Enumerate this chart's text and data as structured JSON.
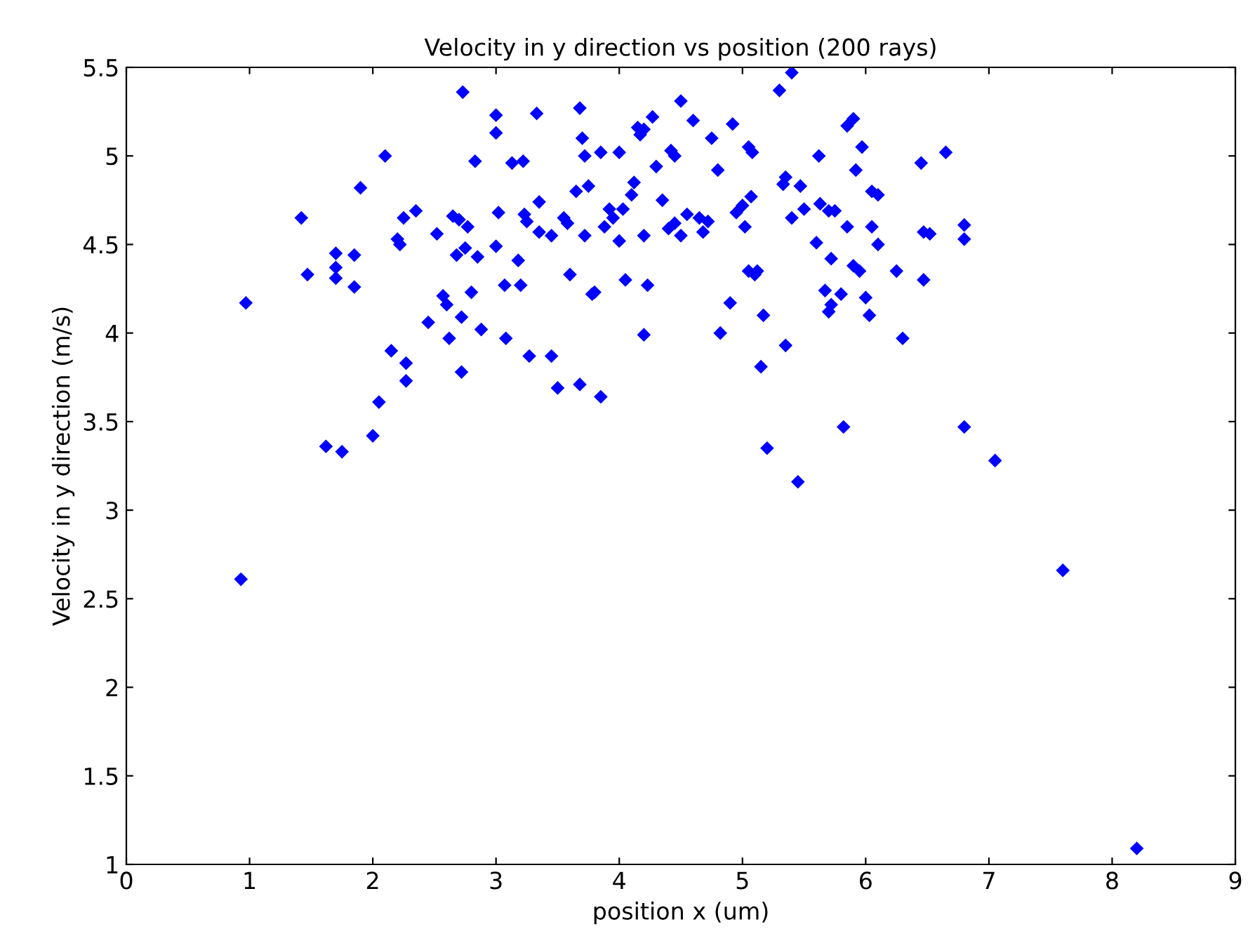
{
  "chart_data": {
    "type": "scatter",
    "title": "Velocity in y direction vs position (200 rays)",
    "xlabel": "position x (um)",
    "ylabel": "Velocity in y direction (m/s)",
    "xlim": [
      0,
      9
    ],
    "xticks": [
      0,
      1,
      2,
      3,
      4,
      5,
      6,
      7,
      8,
      9
    ],
    "ylim": [
      1,
      5.5
    ],
    "yticks": [
      1,
      1.5,
      2,
      2.5,
      3,
      3.5,
      4,
      4.5,
      5,
      5.5
    ],
    "grid": false,
    "marker": "diamond",
    "series": [
      {
        "color": "#0000ff",
        "x": [
          0.93,
          0.97,
          1.42,
          1.47,
          1.62,
          1.7,
          1.7,
          1.7,
          1.75,
          1.85,
          1.85,
          1.9,
          2.0,
          2.05,
          2.1,
          2.15,
          2.2,
          2.22,
          2.25,
          2.27,
          2.27,
          2.35,
          2.45,
          2.52,
          2.57,
          2.6,
          2.62,
          2.65,
          2.68,
          2.7,
          2.72,
          2.72,
          2.73,
          2.75,
          2.77,
          2.8,
          2.83,
          2.85,
          2.88,
          3.0,
          3.0,
          3.02,
          3.0,
          3.07,
          3.08,
          3.13,
          3.18,
          3.2,
          3.22,
          3.23,
          3.25,
          3.27,
          3.33,
          3.35,
          3.35,
          3.45,
          3.45,
          3.5,
          3.55,
          3.58,
          3.6,
          3.65,
          3.68,
          3.7,
          3.72,
          3.72,
          3.68,
          3.75,
          3.78,
          3.8,
          3.85,
          3.85,
          3.88,
          3.92,
          3.95,
          4.0,
          4.0,
          4.03,
          4.05,
          4.1,
          4.12,
          4.15,
          4.17,
          4.2,
          4.2,
          4.2,
          4.23,
          4.27,
          4.3,
          4.35,
          4.4,
          4.42,
          4.45,
          4.45,
          4.5,
          4.5,
          4.55,
          4.6,
          4.65,
          4.68,
          4.72,
          4.75,
          4.8,
          4.82,
          4.9,
          4.92,
          4.95,
          5.0,
          5.02,
          5.05,
          5.05,
          5.07,
          5.08,
          5.1,
          5.12,
          5.15,
          5.17,
          5.2,
          5.3,
          5.33,
          5.35,
          5.35,
          5.4,
          5.4,
          5.45,
          5.47,
          5.5,
          5.6,
          5.62,
          5.63,
          5.67,
          5.7,
          5.7,
          5.72,
          5.72,
          5.75,
          5.8,
          5.82,
          5.85,
          5.85,
          5.9,
          5.9,
          5.92,
          5.95,
          5.97,
          6.0,
          6.03,
          6.05,
          6.05,
          6.1,
          6.1,
          6.25,
          6.3,
          6.45,
          6.47,
          6.47,
          6.52,
          6.65,
          6.8,
          6.8,
          6.8,
          7.05,
          7.6,
          8.2
        ],
        "values": [
          2.61,
          4.17,
          4.65,
          4.33,
          3.36,
          4.45,
          4.37,
          4.31,
          3.33,
          4.44,
          4.26,
          4.82,
          3.42,
          3.61,
          5.0,
          3.9,
          4.53,
          4.5,
          4.65,
          3.83,
          3.73,
          4.69,
          4.06,
          4.56,
          4.21,
          4.16,
          3.97,
          4.66,
          4.44,
          4.64,
          4.09,
          3.78,
          5.36,
          4.48,
          4.6,
          4.23,
          4.97,
          4.43,
          4.02,
          5.23,
          5.13,
          4.68,
          4.49,
          4.27,
          3.97,
          4.96,
          4.41,
          4.27,
          4.97,
          4.67,
          4.63,
          3.87,
          5.24,
          4.74,
          4.57,
          4.55,
          3.87,
          3.69,
          4.65,
          4.62,
          4.33,
          4.8,
          5.27,
          5.1,
          5.0,
          4.55,
          3.71,
          4.83,
          4.22,
          4.23,
          3.64,
          5.02,
          4.6,
          4.7,
          4.65,
          5.02,
          4.52,
          4.7,
          4.3,
          4.78,
          4.85,
          5.16,
          5.12,
          5.15,
          3.99,
          4.55,
          4.27,
          5.22,
          4.94,
          4.75,
          4.59,
          5.03,
          5.0,
          4.62,
          5.31,
          4.55,
          4.67,
          5.2,
          4.65,
          4.57,
          4.63,
          5.1,
          4.92,
          4.0,
          4.17,
          5.18,
          4.68,
          4.72,
          4.6,
          4.35,
          5.05,
          4.77,
          5.02,
          4.33,
          4.35,
          3.81,
          4.1,
          3.35,
          5.37,
          4.84,
          4.88,
          3.93,
          5.47,
          4.65,
          3.16,
          4.83,
          4.7,
          4.51,
          5.0,
          4.73,
          4.24,
          4.69,
          4.12,
          4.16,
          4.42,
          4.69,
          4.22,
          3.47,
          5.17,
          4.6,
          4.38,
          5.21,
          4.92,
          4.35,
          5.05,
          4.2,
          4.1,
          4.8,
          4.6,
          4.78,
          4.5,
          4.35,
          3.97,
          4.96,
          4.57,
          4.3,
          4.56,
          5.02,
          4.61,
          4.53,
          3.47,
          3.28,
          2.66,
          1.09
        ]
      }
    ]
  }
}
